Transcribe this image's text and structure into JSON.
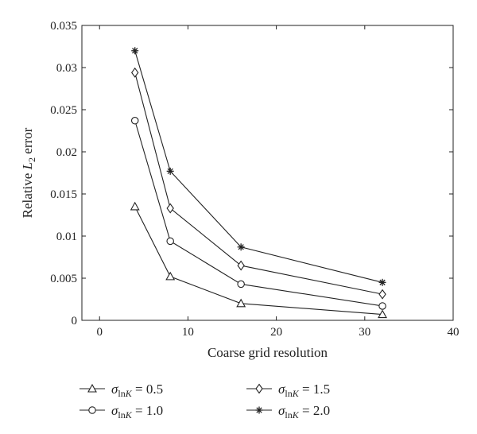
{
  "chart_data": {
    "type": "line",
    "title": "",
    "xlabel": "Coarse grid resolution",
    "ylabel": {
      "prefix": "Relative ",
      "var": "L",
      "sub": "2",
      "suffix": " error"
    },
    "xlim": [
      -2,
      40
    ],
    "ylim": [
      0,
      0.035
    ],
    "xticks": [
      0,
      10,
      20,
      30,
      40
    ],
    "yticks": [
      0,
      0.005,
      0.01,
      0.015,
      0.02,
      0.025,
      0.03,
      0.035
    ],
    "xtick_labels": [
      "0",
      "10",
      "20",
      "30",
      "40"
    ],
    "ytick_labels": [
      "0",
      "0.005",
      "0.01",
      "0.015",
      "0.02",
      "0.025",
      "0.03",
      "0.035"
    ],
    "grid": false,
    "legend_position": "bottom",
    "x": [
      4,
      8,
      16,
      32
    ],
    "series": [
      {
        "label": "σlnK = 0.5",
        "sigma": "σ",
        "sub": "ln",
        "subvar": "K",
        "value": " = 0.5",
        "marker": "triangle",
        "values": [
          0.0135,
          0.0052,
          0.002,
          0.0007
        ]
      },
      {
        "label": "σlnK = 1.0",
        "sigma": "σ",
        "sub": "ln",
        "subvar": "K",
        "value": " = 1.0",
        "marker": "circle",
        "values": [
          0.0237,
          0.0094,
          0.0043,
          0.0017
        ]
      },
      {
        "label": "σlnK = 1.5",
        "sigma": "σ",
        "sub": "ln",
        "subvar": "K",
        "value": " = 1.5",
        "marker": "diamond",
        "values": [
          0.0294,
          0.0133,
          0.0065,
          0.0031
        ]
      },
      {
        "label": "σlnK = 2.0",
        "sigma": "σ",
        "sub": "ln",
        "subvar": "K",
        "value": " = 2.0",
        "marker": "star",
        "values": [
          0.032,
          0.0177,
          0.0087,
          0.0045
        ]
      }
    ]
  }
}
